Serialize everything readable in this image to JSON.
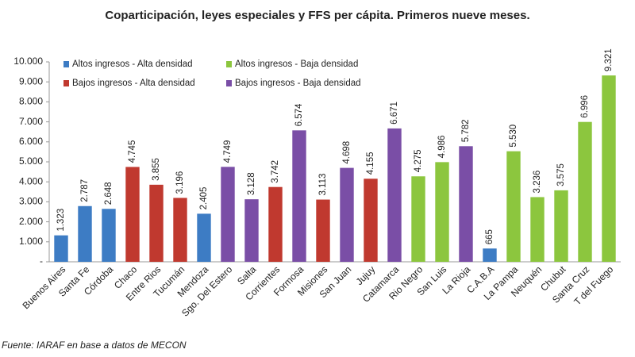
{
  "chart_data": {
    "type": "bar",
    "title": "Coparticipación, leyes especiales y FFS per cápita. Primeros nueve meses.",
    "source": "Fuente: IARAF en base a datos de MECON",
    "categories": [
      "Buenos Aires",
      "Santa Fe",
      "Córdoba",
      "Chaco",
      "Entre Rios",
      "Tucumán",
      "Mendoza",
      "Sgo. Del Estero",
      "Salta",
      "Corrientes",
      "Formosa",
      "Misiones",
      "San Juan",
      "Jujuy",
      "Catamarca",
      "Rio Negro",
      "San Luis",
      "La Rioja",
      "C.A.B.A",
      "La Pampa",
      "Neuquén",
      "Chubut",
      "Santa Cruz",
      "T del Fuego"
    ],
    "series": [
      {
        "name": "Altos ingresos - Alta densidad",
        "color": "#3d7cc4",
        "values": [
          1323,
          2787,
          2648,
          null,
          null,
          null,
          2405,
          null,
          null,
          null,
          null,
          null,
          null,
          null,
          null,
          null,
          null,
          null,
          665,
          null,
          null,
          null,
          null,
          null
        ],
        "value_labels": [
          "1.323",
          "2.787",
          "2.648",
          null,
          null,
          null,
          "2.405",
          null,
          null,
          null,
          null,
          null,
          null,
          null,
          null,
          null,
          null,
          null,
          "665",
          null,
          null,
          null,
          null,
          null
        ]
      },
      {
        "name": "Bajos ingresos - Alta densidad",
        "color": "#c0392f",
        "values": [
          null,
          null,
          null,
          4745,
          3855,
          3196,
          null,
          null,
          null,
          3742,
          null,
          3113,
          null,
          4155,
          null,
          null,
          null,
          null,
          null,
          null,
          null,
          null,
          null,
          null
        ],
        "value_labels": [
          null,
          null,
          null,
          "4.745",
          "3.855",
          "3.196",
          null,
          null,
          null,
          "3.742",
          null,
          "3.113",
          null,
          "4.155",
          null,
          null,
          null,
          null,
          null,
          null,
          null,
          null,
          null,
          null
        ]
      },
      {
        "name": "Altos ingresos - Baja densidad",
        "color": "#8cc63e",
        "values": [
          null,
          null,
          null,
          null,
          null,
          null,
          null,
          null,
          null,
          null,
          null,
          null,
          null,
          null,
          null,
          4275,
          4986,
          null,
          null,
          5530,
          3236,
          3575,
          6996,
          9321
        ],
        "value_labels": [
          null,
          null,
          null,
          null,
          null,
          null,
          null,
          null,
          null,
          null,
          null,
          null,
          null,
          null,
          null,
          "4.275",
          "4.986",
          null,
          null,
          "5.530",
          "3.236",
          "3.575",
          "6.996",
          "9.321"
        ]
      },
      {
        "name": "Bajos ingresos - Baja densidad",
        "color": "#7a4ea6",
        "values": [
          null,
          null,
          null,
          null,
          null,
          null,
          null,
          4749,
          3128,
          null,
          6574,
          null,
          4698,
          null,
          6671,
          null,
          null,
          5782,
          null,
          null,
          null,
          null,
          null,
          null
        ],
        "value_labels": [
          null,
          null,
          null,
          null,
          null,
          null,
          null,
          "4.749",
          "3.128",
          null,
          "6.574",
          null,
          "4.698",
          null,
          "6.671",
          null,
          null,
          "5.782",
          null,
          null,
          null,
          null,
          null,
          null
        ]
      }
    ],
    "ylim": [
      0,
      10000
    ],
    "yticks": [
      {
        "value": 0,
        "label": "-"
      },
      {
        "value": 1000,
        "label": "1.000"
      },
      {
        "value": 2000,
        "label": "2.000"
      },
      {
        "value": 3000,
        "label": "3.000"
      },
      {
        "value": 4000,
        "label": "4.000"
      },
      {
        "value": 5000,
        "label": "5.000"
      },
      {
        "value": 6000,
        "label": "6.000"
      },
      {
        "value": 7000,
        "label": "7.000"
      },
      {
        "value": 8000,
        "label": "8.000"
      },
      {
        "value": 9000,
        "label": "9.000"
      },
      {
        "value": 10000,
        "label": "10.000"
      }
    ],
    "grid": false
  }
}
